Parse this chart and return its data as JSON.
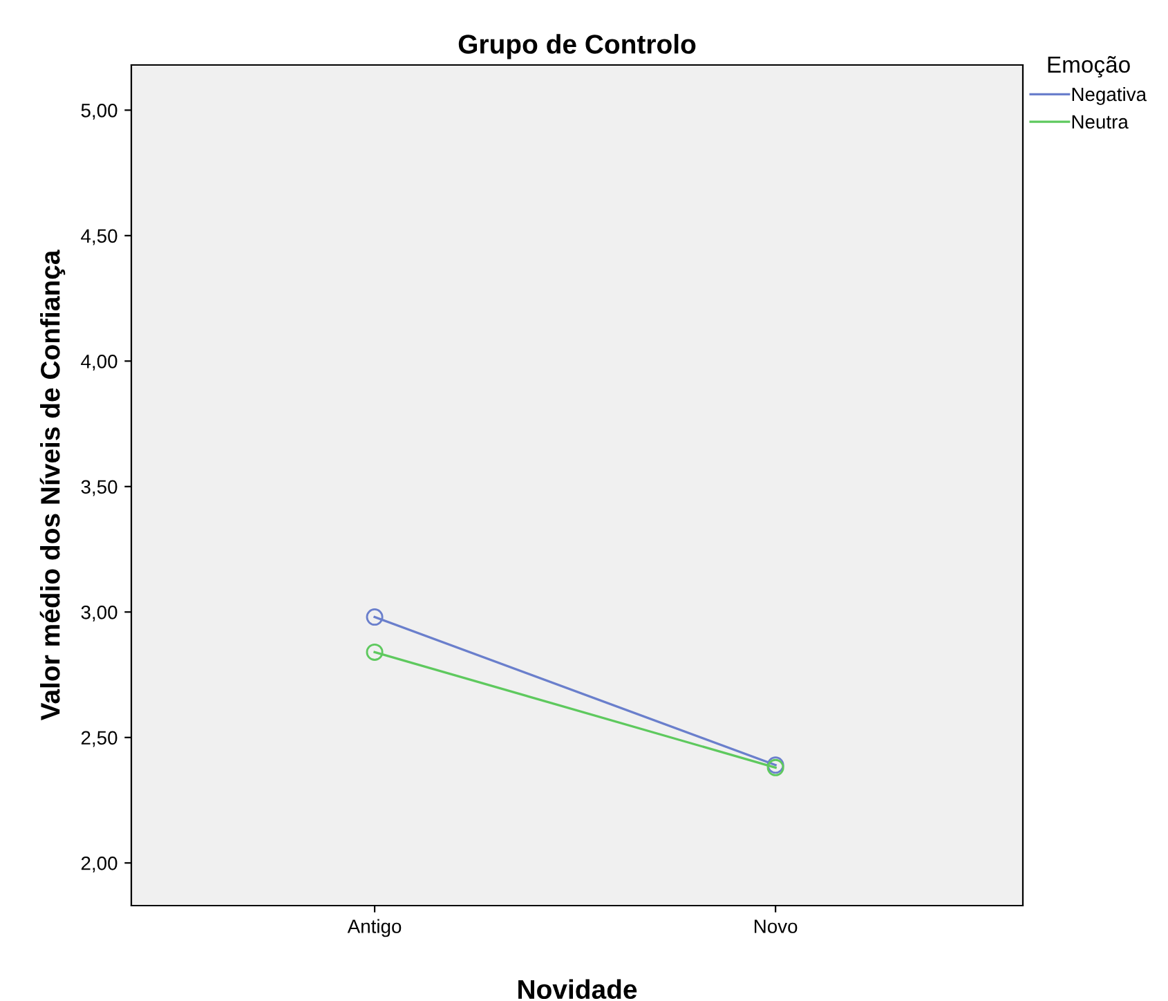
{
  "chart_data": {
    "type": "line",
    "title": "Grupo de Controlo",
    "xlabel": "Novidade",
    "ylabel": "Valor médio dos Níveis de Confiança",
    "legend_title": "Emoção",
    "categories": [
      "Antigo",
      "Novo"
    ],
    "series": [
      {
        "name": "Negativa",
        "color": "#6a7fcc",
        "values": [
          2.98,
          2.39
        ]
      },
      {
        "name": "Neutra",
        "color": "#5ec95e",
        "values": [
          2.84,
          2.38
        ]
      }
    ],
    "ylim": [
      1.83,
      5.18
    ],
    "yticks": [
      {
        "value": 2,
        "label": "2,00"
      },
      {
        "value": 2.5,
        "label": "2,50"
      },
      {
        "value": 3,
        "label": "3,00"
      },
      {
        "value": 3.5,
        "label": "3,50"
      },
      {
        "value": 4,
        "label": "4,00"
      },
      {
        "value": 4.5,
        "label": "4,50"
      },
      {
        "value": 5,
        "label": "5,00"
      }
    ],
    "marker": "circle",
    "line_style": "solid",
    "grid": false,
    "legend": "right"
  }
}
